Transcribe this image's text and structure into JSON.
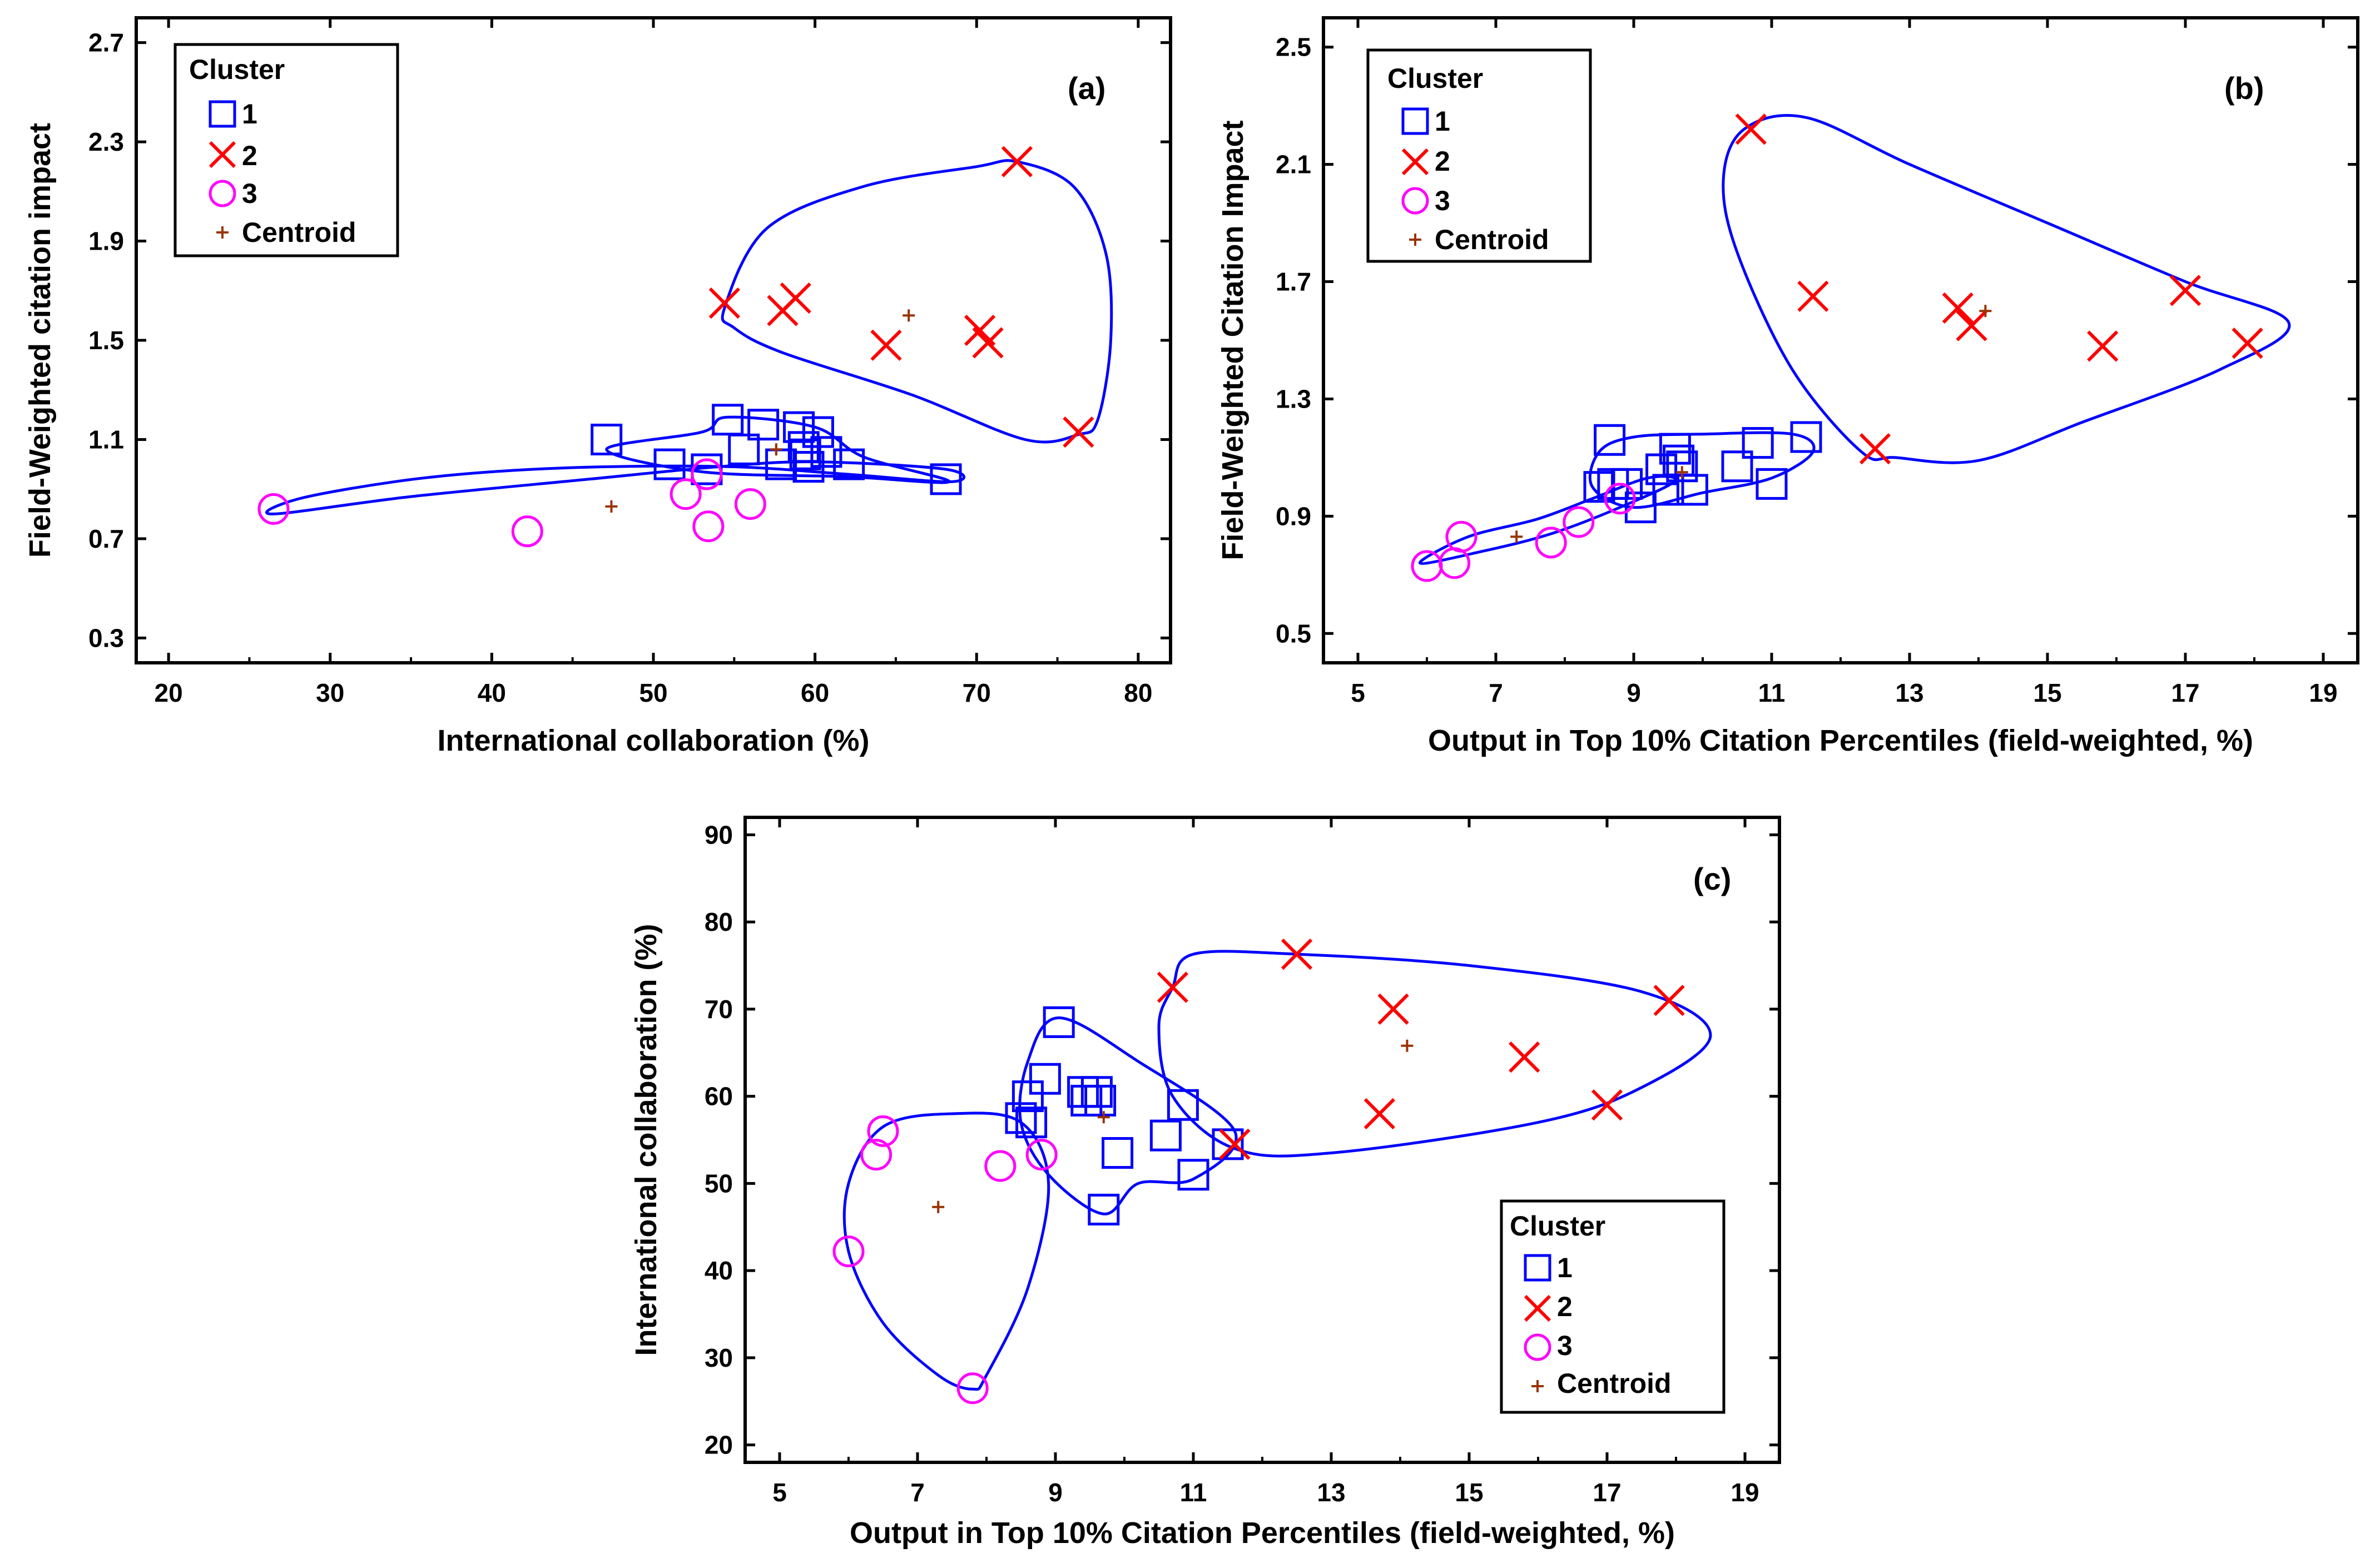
{
  "figure": {
    "colors": {
      "cluster1": "#0000ff",
      "cluster2": "#ff0000",
      "cluster3": "#ff00ff",
      "centroid": "#993300",
      "hull": "#0000ff",
      "axis": "#000000"
    }
  },
  "chart_data": [
    {
      "type": "scatter",
      "panel_label": "(a)",
      "xlabel": "International collaboration (%)",
      "ylabel": "Field-Weighted citation impact",
      "xlim": [
        18,
        82
      ],
      "ylim": [
        0.2,
        2.8
      ],
      "xticks": [
        20,
        30,
        40,
        50,
        60,
        70,
        80
      ],
      "yticks": [
        0.3,
        0.7,
        1.1,
        1.5,
        1.9,
        2.3,
        2.7
      ],
      "yprecision": 1,
      "legend": {
        "title": "Cluster",
        "entries": [
          "1",
          "2",
          "3",
          "Centroid"
        ],
        "position": "top-left"
      },
      "series": [
        {
          "name": "1",
          "marker": "square",
          "color": "#0000ff",
          "points": [
            [
              47.1,
              1.1
            ],
            [
              51.0,
              1.0
            ],
            [
              53.3,
              0.98
            ],
            [
              54.6,
              1.18
            ],
            [
              55.6,
              1.06
            ],
            [
              56.8,
              1.16
            ],
            [
              57.9,
              1.0
            ],
            [
              59.0,
              1.15
            ],
            [
              59.3,
              1.07
            ],
            [
              59.4,
              1.04
            ],
            [
              59.6,
              0.99
            ],
            [
              60.2,
              1.13
            ],
            [
              60.7,
              1.05
            ],
            [
              62.1,
              1.0
            ],
            [
              68.1,
              0.94
            ]
          ]
        },
        {
          "name": "2",
          "marker": "x",
          "color": "#ff0000",
          "points": [
            [
              54.4,
              1.65
            ],
            [
              58.0,
              1.62
            ],
            [
              58.8,
              1.67
            ],
            [
              64.4,
              1.48
            ],
            [
              70.2,
              1.54
            ],
            [
              70.7,
              1.49
            ],
            [
              72.5,
              2.22
            ],
            [
              76.3,
              1.13
            ]
          ]
        },
        {
          "name": "3",
          "marker": "circle",
          "color": "#ff00ff",
          "points": [
            [
              26.5,
              0.82
            ],
            [
              42.2,
              0.73
            ],
            [
              52.0,
              0.88
            ],
            [
              53.3,
              0.96
            ],
            [
              53.4,
              0.75
            ],
            [
              56.0,
              0.84
            ]
          ]
        },
        {
          "name": "Centroid",
          "marker": "plus",
          "color": "#993300",
          "points": [
            [
              47.4,
              0.83
            ],
            [
              57.6,
              1.06
            ],
            [
              65.8,
              1.6
            ]
          ]
        }
      ],
      "hulls": [
        [
          [
            26.5,
            0.8
          ],
          [
            35,
            0.87
          ],
          [
            46,
            0.94
          ],
          [
            54,
            0.99
          ],
          [
            60,
            1.01
          ],
          [
            68.1,
            0.98
          ],
          [
            68.5,
            0.93
          ],
          [
            62,
            0.96
          ],
          [
            55,
            0.99
          ],
          [
            47,
            0.99
          ],
          [
            40,
            0.97
          ],
          [
            34,
            0.93
          ],
          [
            28,
            0.86
          ],
          [
            26.5,
            0.8
          ]
        ],
        [
          [
            47.1,
            1.06
          ],
          [
            53,
            1.13
          ],
          [
            54.6,
            1.19
          ],
          [
            60,
            1.15
          ],
          [
            63,
            1.03
          ],
          [
            68.3,
            0.93
          ],
          [
            62,
            0.95
          ],
          [
            53,
            0.97
          ],
          [
            47.1,
            1.06
          ]
        ],
        [
          [
            54.4,
            1.63
          ],
          [
            57,
            1.95
          ],
          [
            63,
            2.12
          ],
          [
            70,
            2.2
          ],
          [
            72.5,
            2.22
          ],
          [
            76,
            2.12
          ],
          [
            78,
            1.85
          ],
          [
            78.3,
            1.5
          ],
          [
            77.5,
            1.18
          ],
          [
            76.3,
            1.12
          ],
          [
            73,
            1.1
          ],
          [
            66,
            1.28
          ],
          [
            58,
            1.45
          ],
          [
            55,
            1.55
          ],
          [
            54.4,
            1.63
          ]
        ]
      ]
    },
    {
      "type": "scatter",
      "panel_label": "(b)",
      "xlabel": "Output in Top 10% Citation Percentiles (field-weighted, %)",
      "ylabel": "Field-Weighted Citation Impact",
      "xlim": [
        4.5,
        19.5
      ],
      "ylim": [
        0.4,
        2.6
      ],
      "xticks": [
        5,
        7,
        9,
        11,
        13,
        15,
        17,
        19
      ],
      "yticks": [
        0.5,
        0.9,
        1.3,
        1.7,
        2.1,
        2.5
      ],
      "yprecision": 1,
      "legend": {
        "title": "Cluster",
        "entries": [
          "1",
          "2",
          "3",
          "Centroid"
        ],
        "position": "top-left"
      },
      "series": [
        {
          "name": "1",
          "marker": "square",
          "color": "#0000ff",
          "points": [
            [
              8.5,
              1.0
            ],
            [
              8.65,
              1.16
            ],
            [
              8.7,
              1.01
            ],
            [
              8.9,
              1.01
            ],
            [
              9.1,
              0.93
            ],
            [
              9.4,
              1.06
            ],
            [
              9.5,
              0.99
            ],
            [
              9.6,
              1.13
            ],
            [
              9.65,
              1.09
            ],
            [
              9.7,
              1.07
            ],
            [
              9.85,
              0.99
            ],
            [
              10.5,
              1.07
            ],
            [
              10.8,
              1.15
            ],
            [
              11.0,
              1.01
            ],
            [
              11.5,
              1.17
            ]
          ]
        },
        {
          "name": "2",
          "marker": "x",
          "color": "#ff0000",
          "points": [
            [
              10.7,
              2.22
            ],
            [
              11.6,
              1.65
            ],
            [
              12.5,
              1.13
            ],
            [
              13.7,
              1.61
            ],
            [
              13.9,
              1.55
            ],
            [
              15.8,
              1.48
            ],
            [
              17.0,
              1.67
            ],
            [
              17.9,
              1.49
            ]
          ]
        },
        {
          "name": "3",
          "marker": "circle",
          "color": "#ff00ff",
          "points": [
            [
              6.0,
              0.73
            ],
            [
              6.4,
              0.74
            ],
            [
              6.5,
              0.83
            ],
            [
              7.8,
              0.81
            ],
            [
              8.2,
              0.88
            ],
            [
              8.8,
              0.96
            ]
          ]
        },
        {
          "name": "Centroid",
          "marker": "plus",
          "color": "#993300",
          "points": [
            [
              7.3,
              0.83
            ],
            [
              9.7,
              1.05
            ],
            [
              14.1,
              1.6
            ]
          ]
        }
      ],
      "hulls": [
        [
          [
            5.9,
            0.74
          ],
          [
            6.6,
            0.83
          ],
          [
            7.6,
            0.89
          ],
          [
            8.4,
            0.96
          ],
          [
            9.2,
            1.03
          ],
          [
            9.6,
            1.02
          ],
          [
            8.8,
            0.93
          ],
          [
            7.8,
            0.84
          ],
          [
            6.8,
            0.78
          ],
          [
            5.9,
            0.74
          ]
        ],
        [
          [
            8.4,
            1.0
          ],
          [
            8.5,
            1.12
          ],
          [
            9.0,
            1.17
          ],
          [
            10,
            1.18
          ],
          [
            11.3,
            1.18
          ],
          [
            11.6,
            1.12
          ],
          [
            11.0,
            1.03
          ],
          [
            10.0,
            0.98
          ],
          [
            9.0,
            0.93
          ],
          [
            8.4,
            1.0
          ]
        ],
        [
          [
            10.3,
            2.05
          ],
          [
            10.6,
            2.22
          ],
          [
            11.5,
            2.26
          ],
          [
            13,
            2.1
          ],
          [
            15,
            1.9
          ],
          [
            17,
            1.7
          ],
          [
            18.5,
            1.56
          ],
          [
            17.5,
            1.4
          ],
          [
            15.5,
            1.22
          ],
          [
            14,
            1.09
          ],
          [
            12.8,
            1.1
          ],
          [
            12.3,
            1.12
          ],
          [
            11.3,
            1.4
          ],
          [
            10.5,
            1.8
          ],
          [
            10.3,
            2.05
          ]
        ]
      ]
    },
    {
      "type": "scatter",
      "panel_label": "(c)",
      "xlabel": "Output in Top 10% Citation Percentiles (field-weighted, %)",
      "ylabel": "International collaboration (%)",
      "xlim": [
        4.5,
        19.5
      ],
      "ylim": [
        18,
        92
      ],
      "xticks": [
        5,
        7,
        9,
        11,
        13,
        15,
        17,
        19
      ],
      "yticks": [
        20,
        30,
        40,
        50,
        60,
        70,
        80,
        90
      ],
      "yprecision": 0,
      "legend": {
        "title": "Cluster",
        "entries": [
          "1",
          "2",
          "3",
          "Centroid"
        ],
        "position": "bottom-right"
      },
      "series": [
        {
          "name": "1",
          "marker": "square",
          "color": "#0000ff",
          "points": [
            [
              8.5,
              57.5
            ],
            [
              8.6,
              60.0
            ],
            [
              8.65,
              57.0
            ],
            [
              8.85,
              62.0
            ],
            [
              9.05,
              68.5
            ],
            [
              9.4,
              60.5
            ],
            [
              9.45,
              59.5
            ],
            [
              9.6,
              60.5
            ],
            [
              9.65,
              59.5
            ],
            [
              9.7,
              47.0
            ],
            [
              9.9,
              53.5
            ],
            [
              10.6,
              55.5
            ],
            [
              10.85,
              59.0
            ],
            [
              11.0,
              51.0
            ],
            [
              11.5,
              54.5
            ]
          ]
        },
        {
          "name": "2",
          "marker": "x",
          "color": "#ff0000",
          "points": [
            [
              10.7,
              72.5
            ],
            [
              11.6,
              54.5
            ],
            [
              12.5,
              76.3
            ],
            [
              13.7,
              58.0
            ],
            [
              13.9,
              70.0
            ],
            [
              15.8,
              64.5
            ],
            [
              17.0,
              59.0
            ],
            [
              17.9,
              71.0
            ]
          ]
        },
        {
          "name": "3",
          "marker": "circle",
          "color": "#ff00ff",
          "points": [
            [
              6.0,
              42.2
            ],
            [
              6.4,
              53.3
            ],
            [
              6.5,
              56.0
            ],
            [
              7.8,
              26.5
            ],
            [
              8.2,
              52.0
            ],
            [
              8.8,
              53.3
            ]
          ]
        },
        {
          "name": "Centroid",
          "marker": "plus",
          "color": "#993300",
          "points": [
            [
              7.3,
              47.3
            ],
            [
              9.7,
              57.6
            ],
            [
              14.1,
              65.8
            ]
          ]
        }
      ],
      "hulls": [
        [
          [
            6.0,
            42.2
          ],
          [
            6.0,
            50
          ],
          [
            6.5,
            56.5
          ],
          [
            7.5,
            58
          ],
          [
            8.5,
            57
          ],
          [
            8.9,
            50
          ],
          [
            8.6,
            38
          ],
          [
            8.0,
            28
          ],
          [
            7.8,
            26.4
          ],
          [
            7.3,
            28
          ],
          [
            6.5,
            34
          ],
          [
            6.0,
            42.2
          ]
        ],
        [
          [
            8.5,
            57
          ],
          [
            8.6,
            64
          ],
          [
            9.05,
            69
          ],
          [
            10.2,
            64
          ],
          [
            11.6,
            56
          ],
          [
            11.0,
            50.5
          ],
          [
            10.2,
            50
          ],
          [
            9.7,
            46.5
          ],
          [
            8.9,
            51
          ],
          [
            8.5,
            57
          ]
        ],
        [
          [
            10.7,
            72.5
          ],
          [
            11.0,
            76.3
          ],
          [
            12.5,
            76.3
          ],
          [
            15,
            75
          ],
          [
            17.5,
            72
          ],
          [
            18.5,
            67
          ],
          [
            17.5,
            61
          ],
          [
            16,
            57
          ],
          [
            13,
            53.5
          ],
          [
            11.6,
            54
          ],
          [
            10.7,
            60
          ],
          [
            10.5,
            68
          ],
          [
            10.7,
            72.5
          ]
        ]
      ]
    }
  ]
}
